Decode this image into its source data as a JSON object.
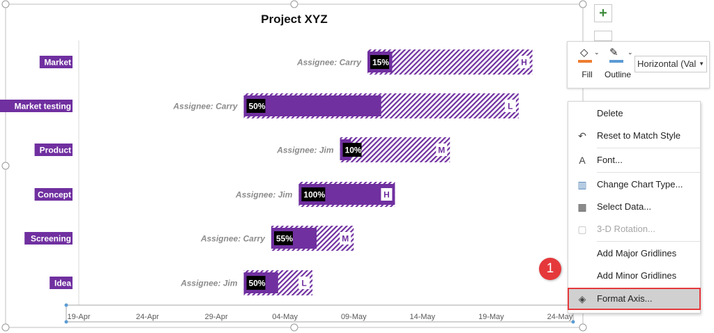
{
  "chart_data": {
    "type": "bar",
    "title": "Project XYZ",
    "xaxis_ticks": [
      "19-Apr",
      "24-Apr",
      "29-Apr",
      "04-May",
      "09-May",
      "14-May",
      "19-May",
      "24-May"
    ],
    "xlim": [
      "2024-04-19",
      "2024-05-24"
    ],
    "colors": {
      "bar": "#7030a0",
      "label_bg": "#000000",
      "task_bg": "#7030a0",
      "assignee": "#8c8c8c"
    },
    "tasks": [
      {
        "name": "Market",
        "start": "2024-05-10",
        "duration_days": 12,
        "progress": 15,
        "progress_label": "15%",
        "assignee": "Assignee: Carry",
        "priority": "H"
      },
      {
        "name": "Market testing",
        "start": "2024-05-01",
        "duration_days": 20,
        "progress": 50,
        "progress_label": "50%",
        "assignee": "Assignee: Carry",
        "priority": "L"
      },
      {
        "name": "Product",
        "start": "2024-05-08",
        "duration_days": 8,
        "progress": 10,
        "progress_label": "10%",
        "assignee": "Assignee: Jim",
        "priority": "M"
      },
      {
        "name": "Concept",
        "start": "2024-05-05",
        "duration_days": 7,
        "progress": 100,
        "progress_label": "100%",
        "assignee": "Assignee: Jim",
        "priority": "H"
      },
      {
        "name": "Screening",
        "start": "2024-05-03",
        "duration_days": 6,
        "progress": 55,
        "progress_label": "55%",
        "assignee": "Assignee: Carry",
        "priority": "M"
      },
      {
        "name": "Idea",
        "start": "2024-05-01",
        "duration_days": 5,
        "progress": 50,
        "progress_label": "50%",
        "assignee": "Assignee: Jim",
        "priority": "L"
      }
    ]
  },
  "side_buttons": {
    "add": "+"
  },
  "mini_toolbar": {
    "fill": "Fill",
    "outline": "Outline",
    "element_select": "Horizontal (Val",
    "fill_color": "#ed7d31",
    "outline_color": "#5b9bd5"
  },
  "context_menu": {
    "items": [
      {
        "label": "Delete",
        "icon": ""
      },
      {
        "label": "Reset to Match Style",
        "icon": "reset-style-icon"
      },
      {
        "label": "Font...",
        "icon": "font-icon"
      },
      {
        "label": "Change Chart Type...",
        "icon": "chart-type-icon"
      },
      {
        "label": "Select Data...",
        "icon": "select-data-icon"
      },
      {
        "label": "3-D Rotation...",
        "icon": "rotation-icon",
        "disabled": true
      },
      {
        "label": "Add Major Gridlines",
        "icon": ""
      },
      {
        "label": "Add Minor Gridlines",
        "icon": ""
      },
      {
        "label": "Format Axis...",
        "icon": "format-axis-icon",
        "highlighted": true
      }
    ]
  },
  "step_badge": "1"
}
